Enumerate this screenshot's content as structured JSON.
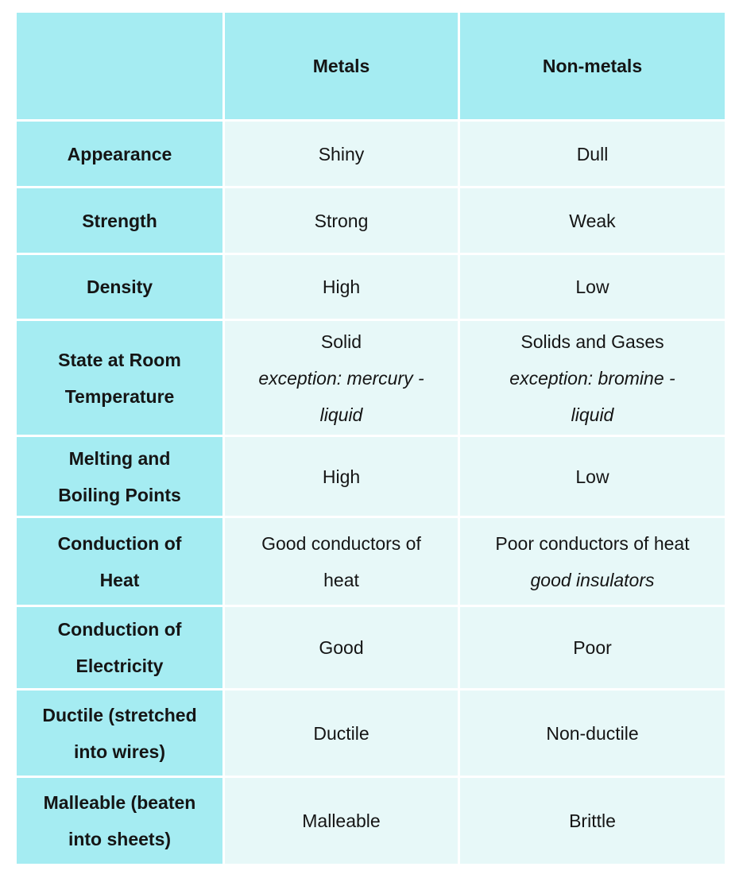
{
  "table": {
    "columns": [
      {
        "label": ""
      },
      {
        "label": "Metals"
      },
      {
        "label": "Non-metals"
      }
    ],
    "rows": [
      {
        "property": "Appearance",
        "metals": [
          {
            "text": "Shiny",
            "italic": false
          }
        ],
        "nonmetals": [
          {
            "text": "Dull",
            "italic": false
          }
        ]
      },
      {
        "property": "Strength",
        "metals": [
          {
            "text": "Strong",
            "italic": false
          }
        ],
        "nonmetals": [
          {
            "text": "Weak",
            "italic": false
          }
        ]
      },
      {
        "property": "Density",
        "metals": [
          {
            "text": "High",
            "italic": false
          }
        ],
        "nonmetals": [
          {
            "text": "Low",
            "italic": false
          }
        ]
      },
      {
        "property": "State at Room\nTemperature",
        "metals": [
          {
            "text": "Solid",
            "italic": false
          },
          {
            "text": "exception: mercury -\nliquid",
            "italic": true
          }
        ],
        "nonmetals": [
          {
            "text": "Solids and Gases",
            "italic": false
          },
          {
            "text": "exception: bromine -\nliquid",
            "italic": true
          }
        ]
      },
      {
        "property": "Melting and\nBoiling Points",
        "metals": [
          {
            "text": "High",
            "italic": false
          }
        ],
        "nonmetals": [
          {
            "text": "Low",
            "italic": false
          }
        ]
      },
      {
        "property": "Conduction of\nHeat",
        "metals": [
          {
            "text": "Good conductors of\nheat",
            "italic": false
          }
        ],
        "nonmetals": [
          {
            "text": "Poor conductors of heat",
            "italic": false
          },
          {
            "text": "good insulators",
            "italic": true
          }
        ]
      },
      {
        "property": "Conduction of\nElectricity",
        "metals": [
          {
            "text": "Good",
            "italic": false
          }
        ],
        "nonmetals": [
          {
            "text": "Poor",
            "italic": false
          }
        ]
      },
      {
        "property": "Ductile (stretched\ninto wires)",
        "metals": [
          {
            "text": "Ductile",
            "italic": false
          }
        ],
        "nonmetals": [
          {
            "text": "Non-ductile",
            "italic": false
          }
        ]
      },
      {
        "property": "Malleable (beaten\ninto sheets)",
        "metals": [
          {
            "text": "Malleable",
            "italic": false
          }
        ],
        "nonmetals": [
          {
            "text": "Brittle",
            "italic": false
          }
        ]
      }
    ],
    "colors": {
      "header_bg": "#a5ecf2",
      "label_bg": "#a5ecf2",
      "cell_bg": "#e7f8f8",
      "divider": "#ffffff",
      "text": "#151515"
    }
  },
  "chart_data": {
    "type": "table",
    "columns": [
      "",
      "Metals",
      "Non-metals"
    ],
    "rows": [
      [
        "Appearance",
        "Shiny",
        "Dull"
      ],
      [
        "Strength",
        "Strong",
        "Weak"
      ],
      [
        "Density",
        "High",
        "Low"
      ],
      [
        "State at Room Temperature",
        "Solid — exception: mercury - liquid",
        "Solids and Gases — exception: bromine - liquid"
      ],
      [
        "Melting and Boiling Points",
        "High",
        "Low"
      ],
      [
        "Conduction of Heat",
        "Good conductors of heat",
        "Poor conductors of heat, good insulators"
      ],
      [
        "Conduction of Electricity",
        "Good",
        "Poor"
      ],
      [
        "Ductile (stretched into wires)",
        "Ductile",
        "Non-ductile"
      ],
      [
        "Malleable (beaten into sheets)",
        "Malleable",
        "Brittle"
      ]
    ]
  }
}
